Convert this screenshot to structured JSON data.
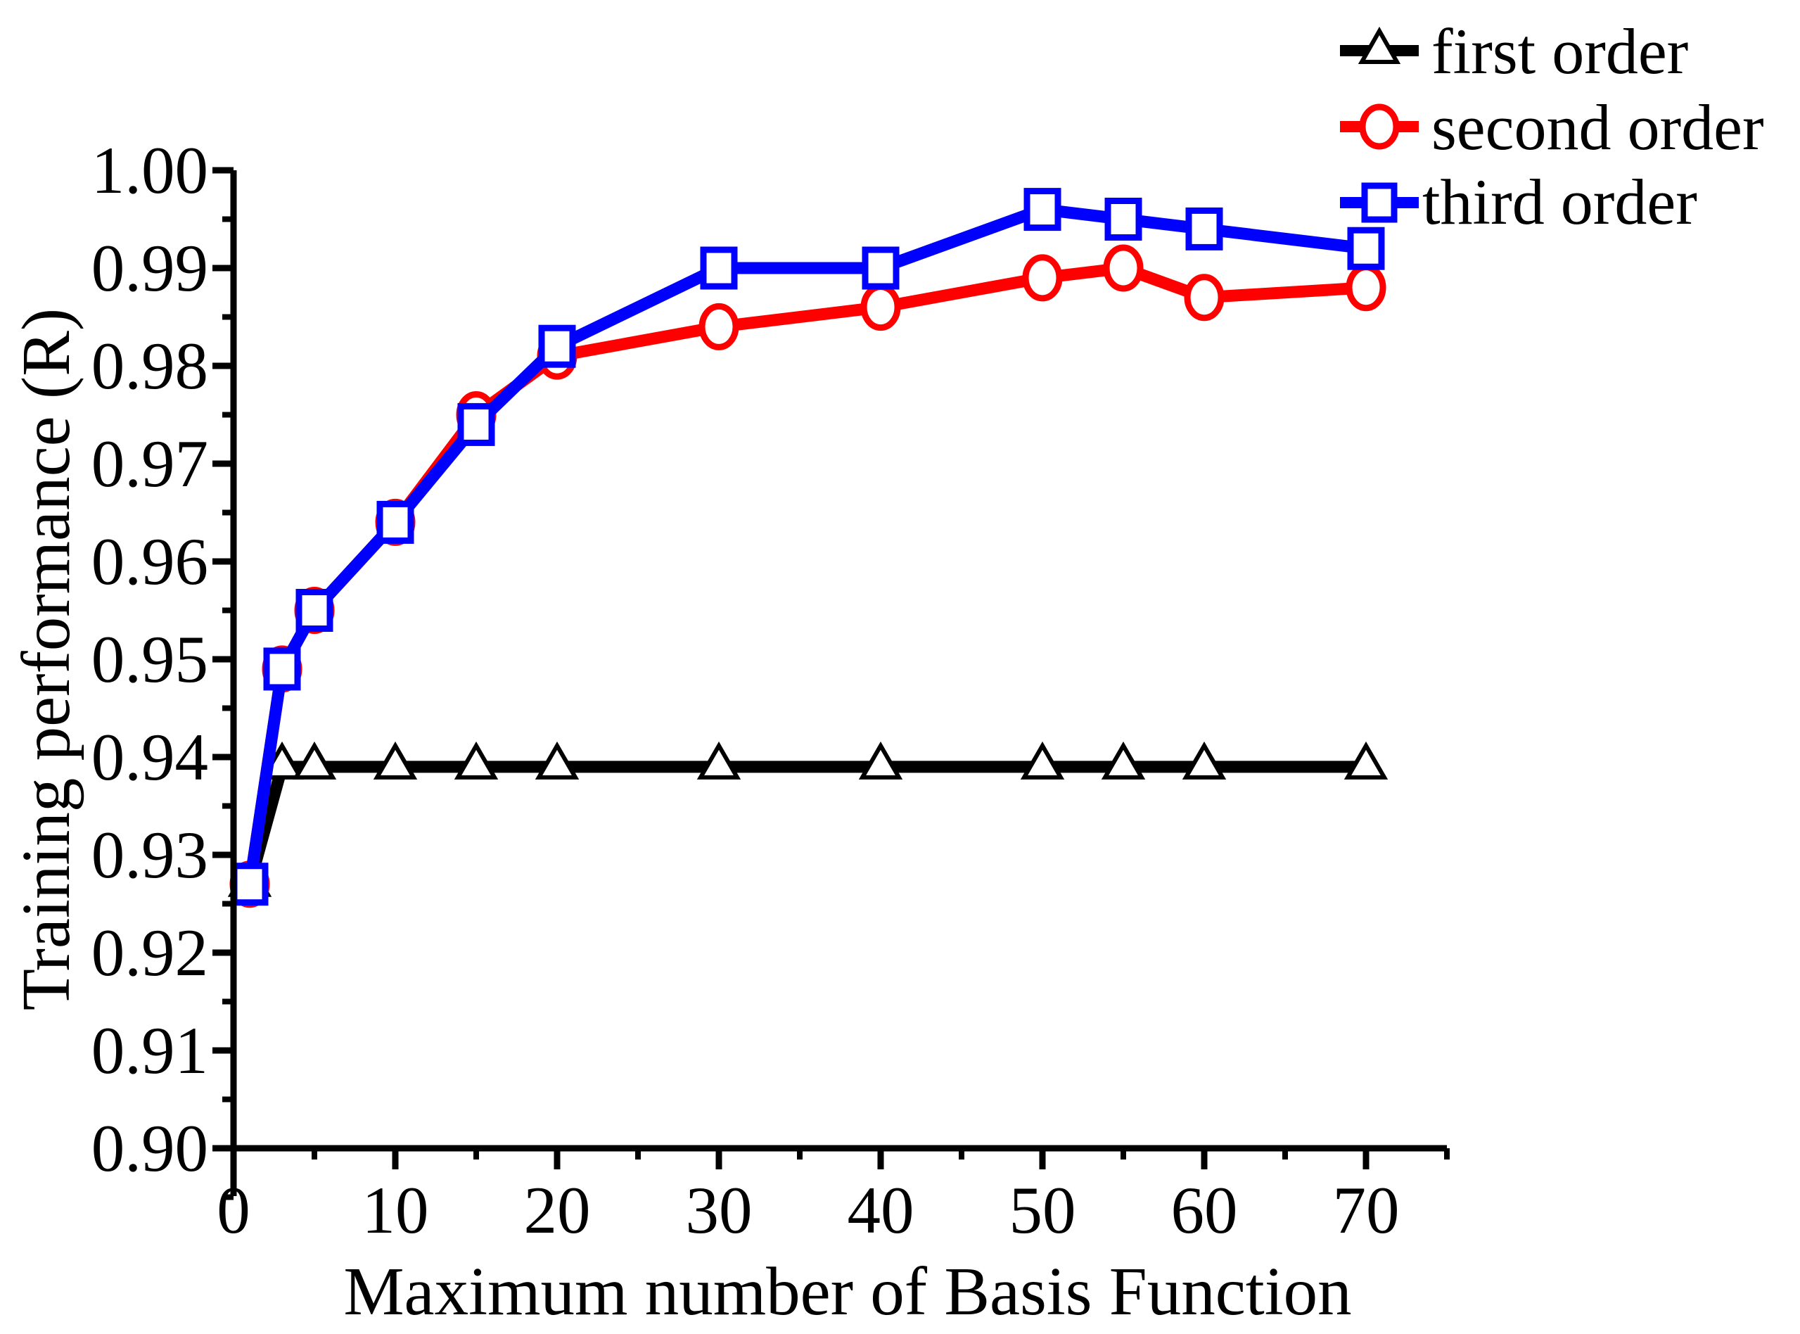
{
  "figure": {
    "background": "#ffffff",
    "axis_color": "#000000",
    "text_color": "#000000"
  },
  "chart_data": {
    "type": "line",
    "title": "",
    "xlabel": "Maximum number of Basis Function",
    "ylabel": "Training performance (R)",
    "x": [
      1,
      3,
      5,
      10,
      15,
      20,
      30,
      40,
      50,
      55,
      60,
      70
    ],
    "series": [
      {
        "name": "first order",
        "color": "#000000",
        "marker": "triangle",
        "values": [
          0.927,
          0.939,
          0.939,
          0.939,
          0.939,
          0.939,
          0.939,
          0.939,
          0.939,
          0.939,
          0.939,
          0.939
        ]
      },
      {
        "name": "second order",
        "color": "#ff0000",
        "marker": "circle",
        "values": [
          0.927,
          0.949,
          0.955,
          0.964,
          0.975,
          0.981,
          0.984,
          0.986,
          0.989,
          0.99,
          0.987,
          0.988
        ]
      },
      {
        "name": "third order",
        "color": "#0000ff",
        "marker": "square",
        "values": [
          0.927,
          0.949,
          0.955,
          0.964,
          0.974,
          0.982,
          0.99,
          0.99,
          0.996,
          0.995,
          0.994,
          0.992
        ]
      }
    ],
    "xlim": [
      0,
      75
    ],
    "ylim": [
      0.895,
      1.0
    ],
    "x_major_ticks": [
      0,
      10,
      20,
      30,
      40,
      50,
      60,
      70
    ],
    "x_tick_labels": [
      "0",
      "10",
      "20",
      "30",
      "40",
      "50",
      "60",
      "70"
    ],
    "x_minor_ticks": [
      5,
      15,
      25,
      35,
      45,
      55,
      65,
      75
    ],
    "y_major_ticks": [
      0.9,
      0.91,
      0.92,
      0.93,
      0.94,
      0.95,
      0.96,
      0.97,
      0.98,
      0.99,
      1.0
    ],
    "y_tick_labels": [
      "0.90",
      "0.91",
      "0.92",
      "0.93",
      "0.94",
      "0.95",
      "0.96",
      "0.97",
      "0.98",
      "0.99",
      "1.00"
    ],
    "y_minor_ticks": [
      0.895,
      0.905,
      0.915,
      0.925,
      0.935,
      0.945,
      0.955,
      0.965,
      0.975,
      0.985,
      0.995
    ],
    "grid": false,
    "legend_position": "top-right"
  }
}
